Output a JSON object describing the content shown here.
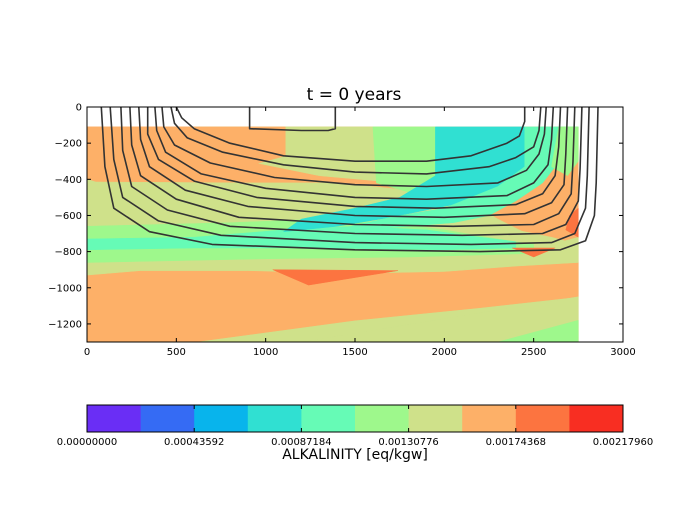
{
  "chart_data": {
    "type": "heatmap",
    "title": "t = 0 years",
    "x_ticks": [
      0,
      500,
      1000,
      1500,
      2000,
      2500,
      3000
    ],
    "y_ticks": [
      0,
      -200,
      -400,
      -600,
      -800,
      -1000,
      -1200
    ],
    "xlim": [
      0,
      3000
    ],
    "ylim": [
      -1300,
      0
    ],
    "grid": false,
    "colorbar": {
      "label": "ALKALINITY [eq/kgw]",
      "tick_labels": [
        "0.00000000",
        "0.00043592",
        "0.00087184",
        "0.00130776",
        "0.00174368",
        "0.00217960"
      ],
      "range": [
        0,
        0.0021796
      ],
      "colors": [
        "#6a2ef5",
        "#356bf4",
        "#08b4ec",
        "#30e0d2",
        "#66fbb6",
        "#9ef88c",
        "#cfe18a",
        "#fdb068",
        "#fc7440",
        "#f82e22"
      ]
    },
    "filled_regions": [
      {
        "level": 7,
        "points": [
          [
            0,
            -110
          ],
          [
            2750,
            -110
          ],
          [
            2750,
            -1300
          ],
          [
            0,
            -1300
          ]
        ]
      },
      {
        "level": 6,
        "points": [
          [
            0,
            -400
          ],
          [
            50,
            -415
          ],
          [
            900,
            -420
          ],
          [
            1400,
            -420
          ],
          [
            1800,
            -460
          ],
          [
            2100,
            -500
          ],
          [
            2300,
            -620
          ],
          [
            2500,
            -720
          ],
          [
            2600,
            -760
          ],
          [
            2750,
            -720
          ],
          [
            2750,
            -1300
          ],
          [
            0,
            -1300
          ]
        ]
      },
      {
        "level": 7,
        "points": [
          [
            0,
            -640
          ],
          [
            600,
            -610
          ],
          [
            1100,
            -580
          ],
          [
            1500,
            -560
          ],
          [
            1800,
            -600
          ],
          [
            2100,
            -660
          ],
          [
            2400,
            -760
          ],
          [
            2600,
            -820
          ],
          [
            2750,
            -860
          ],
          [
            2750,
            -1050
          ],
          [
            2200,
            -1110
          ],
          [
            1500,
            -1180
          ],
          [
            900,
            -1260
          ],
          [
            600,
            -1300
          ],
          [
            0,
            -1300
          ]
        ]
      },
      {
        "level": 6,
        "points": [
          [
            1200,
            -1300
          ],
          [
            2750,
            -1050
          ],
          [
            2750,
            -1300
          ]
        ]
      },
      {
        "level": 5,
        "points": [
          [
            2300,
            -1300
          ],
          [
            2750,
            -1180
          ],
          [
            2750,
            -1300
          ]
        ]
      },
      {
        "level": 6,
        "points": [
          [
            0,
            -550
          ],
          [
            600,
            -555
          ],
          [
            1100,
            -560
          ],
          [
            1500,
            -555
          ],
          [
            1750,
            -580
          ],
          [
            2000,
            -610
          ],
          [
            2300,
            -660
          ],
          [
            2600,
            -720
          ],
          [
            2750,
            -760
          ],
          [
            2750,
            -860
          ],
          [
            2400,
            -880
          ],
          [
            2000,
            -910
          ],
          [
            1500,
            -920
          ],
          [
            900,
            -905
          ],
          [
            300,
            -905
          ],
          [
            0,
            -930
          ]
        ]
      },
      {
        "level": 5,
        "points": [
          [
            0,
            -660
          ],
          [
            800,
            -640
          ],
          [
            1300,
            -620
          ],
          [
            1700,
            -640
          ],
          [
            2000,
            -680
          ],
          [
            2300,
            -730
          ],
          [
            2500,
            -760
          ],
          [
            2500,
            -810
          ],
          [
            1800,
            -830
          ],
          [
            1000,
            -840
          ],
          [
            0,
            -860
          ]
        ]
      },
      {
        "level": 4,
        "points": [
          [
            0,
            -730
          ],
          [
            600,
            -720
          ],
          [
            1100,
            -680
          ],
          [
            1500,
            -660
          ],
          [
            1900,
            -680
          ],
          [
            2200,
            -720
          ],
          [
            2400,
            -745
          ],
          [
            2400,
            -780
          ],
          [
            2000,
            -790
          ],
          [
            1300,
            -780
          ],
          [
            600,
            -780
          ],
          [
            0,
            -790
          ]
        ]
      },
      {
        "level": 6,
        "points": [
          [
            600,
            -110
          ],
          [
            1200,
            -110
          ],
          [
            1700,
            -110
          ],
          [
            1750,
            -420
          ],
          [
            1300,
            -380
          ],
          [
            900,
            -300
          ],
          [
            600,
            -260
          ]
        ]
      },
      {
        "level": 5,
        "points": [
          [
            1600,
            -110
          ],
          [
            1950,
            -110
          ],
          [
            2100,
            -380
          ],
          [
            2000,
            -520
          ],
          [
            1800,
            -470
          ],
          [
            1620,
            -420
          ]
        ]
      },
      {
        "level": 3,
        "points": [
          [
            1950,
            -110
          ],
          [
            2450,
            -110
          ],
          [
            2450,
            -330
          ],
          [
            2300,
            -440
          ],
          [
            2150,
            -520
          ],
          [
            1900,
            -570
          ],
          [
            1700,
            -610
          ],
          [
            1400,
            -660
          ],
          [
            1100,
            -690
          ],
          [
            1200,
            -620
          ],
          [
            1500,
            -560
          ],
          [
            1750,
            -500
          ],
          [
            1950,
            -380
          ]
        ]
      },
      {
        "level": 4,
        "points": [
          [
            2450,
            -110
          ],
          [
            2750,
            -110
          ],
          [
            2660,
            -280
          ],
          [
            2550,
            -420
          ],
          [
            2400,
            -520
          ],
          [
            2250,
            -600
          ],
          [
            2050,
            -640
          ],
          [
            1800,
            -660
          ],
          [
            1500,
            -680
          ],
          [
            1300,
            -700
          ],
          [
            1700,
            -610
          ],
          [
            2000,
            -560
          ],
          [
            2300,
            -440
          ],
          [
            2450,
            -330
          ]
        ]
      },
      {
        "level": 5,
        "points": [
          [
            2640,
            -110
          ],
          [
            2750,
            -110
          ],
          [
            2750,
            -300
          ],
          [
            2690,
            -380
          ],
          [
            2600,
            -330
          ]
        ]
      },
      {
        "level": 7,
        "points": [
          [
            0,
            -110
          ],
          [
            1110,
            -110
          ],
          [
            1110,
            -270
          ],
          [
            850,
            -340
          ],
          [
            450,
            -410
          ],
          [
            0,
            -400
          ]
        ]
      },
      {
        "level": 8,
        "points": [
          [
            1040,
            -900
          ],
          [
            1740,
            -905
          ],
          [
            1240,
            -985
          ]
        ]
      },
      {
        "level": 8,
        "points": [
          [
            2380,
            -780
          ],
          [
            2620,
            -780
          ],
          [
            2500,
            -830
          ]
        ]
      },
      {
        "level": 8,
        "points": [
          [
            2700,
            -600
          ],
          [
            2750,
            -560
          ],
          [
            2750,
            -720
          ],
          [
            2680,
            -680
          ]
        ]
      }
    ],
    "contour_lines": [
      [
        [
          910,
          0
        ],
        [
          910,
          -120
        ],
        [
          1200,
          -130
        ],
        [
          1350,
          -130
        ],
        [
          1390,
          -120
        ],
        [
          1390,
          0
        ]
      ],
      [
        [
          500,
          0
        ],
        [
          530,
          -60
        ],
        [
          600,
          -120
        ],
        [
          800,
          -200
        ],
        [
          1100,
          -270
        ],
        [
          1500,
          -300
        ],
        [
          1900,
          -300
        ],
        [
          2150,
          -270
        ],
        [
          2350,
          -200
        ],
        [
          2420,
          -160
        ],
        [
          2450,
          -80
        ],
        [
          2450,
          0
        ]
      ],
      [
        [
          470,
          0
        ],
        [
          490,
          -90
        ],
        [
          560,
          -170
        ],
        [
          760,
          -250
        ],
        [
          1100,
          -320
        ],
        [
          1500,
          -360
        ],
        [
          1900,
          -370
        ],
        [
          2250,
          -330
        ],
        [
          2400,
          -280
        ],
        [
          2500,
          -220
        ],
        [
          2530,
          -130
        ],
        [
          2540,
          0
        ]
      ],
      [
        [
          420,
          0
        ],
        [
          430,
          -110
        ],
        [
          490,
          -210
        ],
        [
          690,
          -310
        ],
        [
          1050,
          -390
        ],
        [
          1500,
          -430
        ],
        [
          1900,
          -440
        ],
        [
          2300,
          -420
        ],
        [
          2460,
          -350
        ],
        [
          2530,
          -260
        ],
        [
          2560,
          -150
        ],
        [
          2570,
          0
        ]
      ],
      [
        [
          380,
          0
        ],
        [
          390,
          -130
        ],
        [
          440,
          -250
        ],
        [
          640,
          -370
        ],
        [
          1000,
          -450
        ],
        [
          1500,
          -500
        ],
        [
          1900,
          -510
        ],
        [
          2350,
          -490
        ],
        [
          2500,
          -420
        ],
        [
          2580,
          -320
        ],
        [
          2600,
          -180
        ],
        [
          2610,
          0
        ]
      ],
      [
        [
          340,
          0
        ],
        [
          340,
          -150
        ],
        [
          400,
          -290
        ],
        [
          600,
          -410
        ],
        [
          950,
          -500
        ],
        [
          1500,
          -550
        ],
        [
          1950,
          -560
        ],
        [
          2400,
          -540
        ],
        [
          2550,
          -480
        ],
        [
          2620,
          -380
        ],
        [
          2640,
          -220
        ],
        [
          2650,
          0
        ]
      ],
      [
        [
          290,
          0
        ],
        [
          300,
          -180
        ],
        [
          350,
          -330
        ],
        [
          550,
          -460
        ],
        [
          900,
          -550
        ],
        [
          1500,
          -600
        ],
        [
          2000,
          -610
        ],
        [
          2450,
          -590
        ],
        [
          2600,
          -530
        ],
        [
          2670,
          -430
        ],
        [
          2680,
          -260
        ],
        [
          2690,
          0
        ]
      ],
      [
        [
          240,
          0
        ],
        [
          250,
          -210
        ],
        [
          300,
          -380
        ],
        [
          500,
          -510
        ],
        [
          850,
          -610
        ],
        [
          1500,
          -650
        ],
        [
          2050,
          -660
        ],
        [
          2500,
          -650
        ],
        [
          2640,
          -590
        ],
        [
          2710,
          -480
        ],
        [
          2720,
          -300
        ],
        [
          2730,
          0
        ]
      ],
      [
        [
          190,
          0
        ],
        [
          200,
          -240
        ],
        [
          250,
          -440
        ],
        [
          450,
          -570
        ],
        [
          800,
          -660
        ],
        [
          1500,
          -700
        ],
        [
          2100,
          -710
        ],
        [
          2550,
          -700
        ],
        [
          2680,
          -650
        ],
        [
          2750,
          -520
        ],
        [
          2760,
          -340
        ],
        [
          2770,
          0
        ]
      ],
      [
        [
          130,
          0
        ],
        [
          150,
          -290
        ],
        [
          200,
          -500
        ],
        [
          400,
          -630
        ],
        [
          750,
          -710
        ],
        [
          1500,
          -750
        ],
        [
          2150,
          -760
        ],
        [
          2600,
          -750
        ],
        [
          2730,
          -700
        ],
        [
          2790,
          -560
        ],
        [
          2800,
          -380
        ],
        [
          2810,
          0
        ]
      ],
      [
        [
          80,
          0
        ],
        [
          100,
          -330
        ],
        [
          150,
          -560
        ],
        [
          350,
          -690
        ],
        [
          700,
          -760
        ],
        [
          1500,
          -790
        ],
        [
          2200,
          -800
        ],
        [
          2650,
          -790
        ],
        [
          2790,
          -740
        ],
        [
          2840,
          -600
        ],
        [
          2850,
          -420
        ],
        [
          2860,
          0
        ]
      ]
    ]
  }
}
